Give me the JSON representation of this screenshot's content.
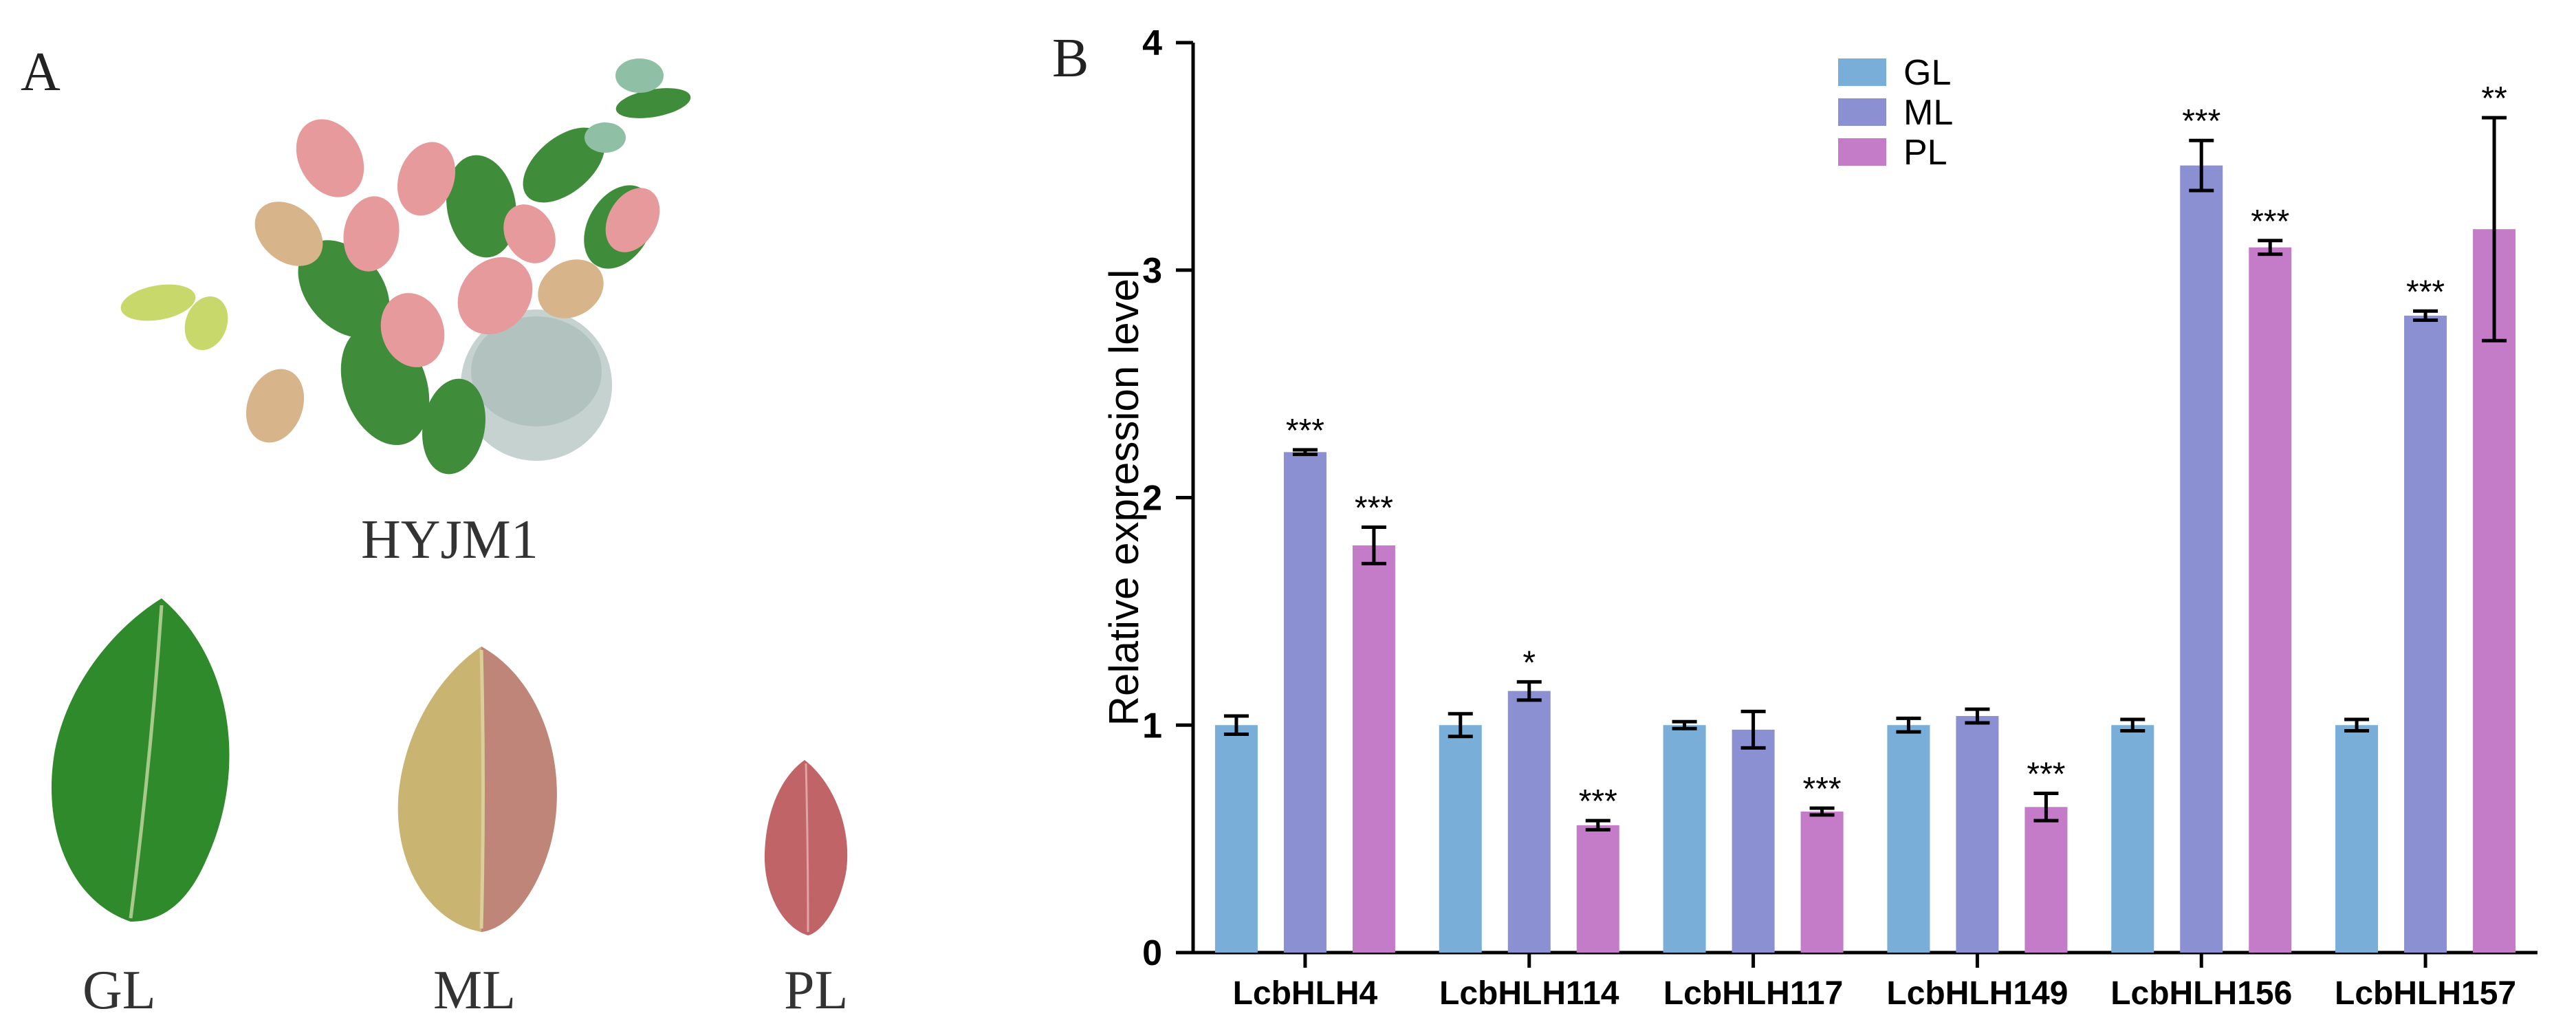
{
  "panels": {
    "a": "A",
    "b": "B"
  },
  "photo_captions": {
    "plant": "HYJM1",
    "leaf_gl": "GL",
    "leaf_ml": "ML",
    "leaf_pl": "PL"
  },
  "colors": {
    "GL": "#79aed8",
    "ML": "#8b90d2",
    "PL": "#c47bc8",
    "leaf_green": "#2e8a2a",
    "leaf_mixed": "#b7a56a",
    "leaf_purple": "#c06468"
  },
  "chart_data": {
    "type": "bar",
    "ylabel": "Relative expression level",
    "xlabel": "",
    "ylim": [
      0,
      4
    ],
    "yticks": [
      0,
      1,
      2,
      3,
      4
    ],
    "legend_position": "top-center",
    "categories": [
      "LcbHLH4",
      "LcbHLH114",
      "LcbHLH117",
      "LcbHLH149",
      "LcbHLH156",
      "LcbHLH157"
    ],
    "series": [
      {
        "name": "GL",
        "values": [
          1.0,
          1.0,
          1.0,
          1.0,
          1.0,
          1.0
        ],
        "errors": [
          0.04,
          0.05,
          0.015,
          0.03,
          0.025,
          0.025
        ],
        "sig": [
          "",
          "",
          "",
          "",
          "",
          ""
        ]
      },
      {
        "name": "ML",
        "values": [
          2.2,
          1.15,
          0.98,
          1.04,
          3.46,
          2.8
        ],
        "errors": [
          0.01,
          0.04,
          0.08,
          0.03,
          0.11,
          0.02
        ],
        "sig": [
          "***",
          "*",
          "",
          "",
          "***",
          "***"
        ]
      },
      {
        "name": "PL",
        "values": [
          1.79,
          0.56,
          0.62,
          0.64,
          3.1,
          3.18
        ],
        "errors": [
          0.08,
          0.02,
          0.015,
          0.06,
          0.03,
          0.49
        ],
        "sig": [
          "***",
          "***",
          "***",
          "***",
          "***",
          "**"
        ]
      }
    ]
  }
}
